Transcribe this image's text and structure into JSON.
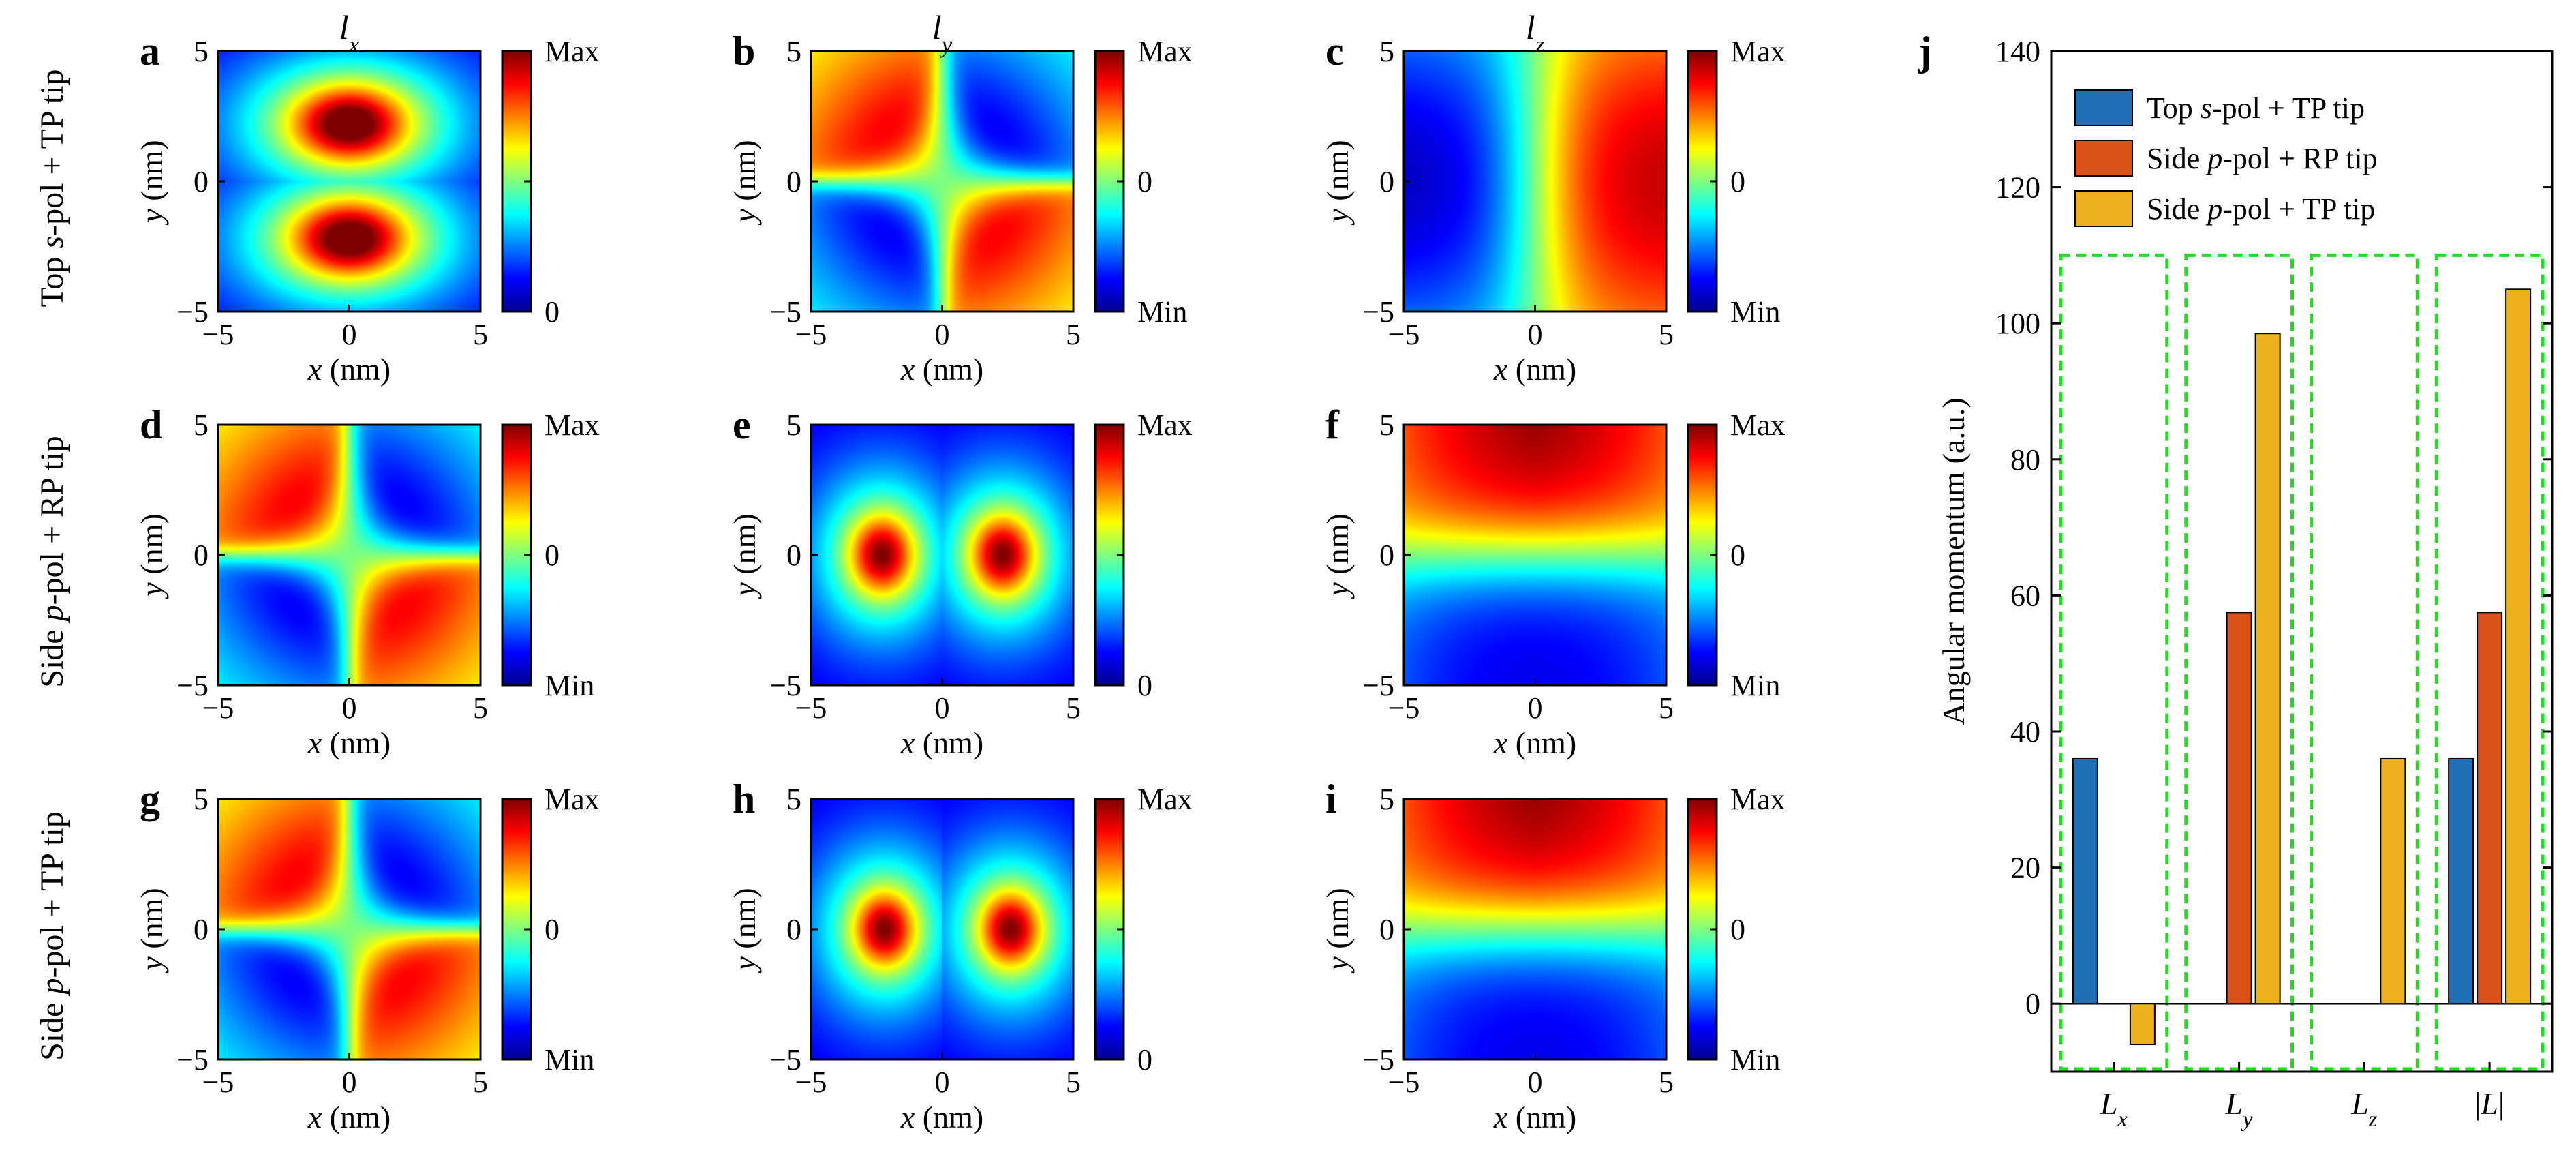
{
  "figure": {
    "panels": [
      {
        "id": "a",
        "row": 0,
        "col": 0,
        "kind": "lx_top",
        "cbar": [
          "Max",
          "0"
        ],
        "title": "l",
        "title_sub": "x"
      },
      {
        "id": "b",
        "row": 0,
        "col": 1,
        "kind": "ly_top",
        "cbar": [
          "Max",
          "0",
          "Min"
        ],
        "title": "l",
        "title_sub": "y"
      },
      {
        "id": "c",
        "row": 0,
        "col": 2,
        "kind": "lz_top",
        "cbar": [
          "Max",
          "0",
          "Min"
        ],
        "title": "l",
        "title_sub": "z"
      },
      {
        "id": "d",
        "row": 1,
        "col": 0,
        "kind": "lx_side",
        "cbar": [
          "Max",
          "0",
          "Min"
        ],
        "title": "",
        "title_sub": ""
      },
      {
        "id": "e",
        "row": 1,
        "col": 1,
        "kind": "ly_side",
        "cbar": [
          "Max",
          "0"
        ],
        "title": "",
        "title_sub": ""
      },
      {
        "id": "f",
        "row": 1,
        "col": 2,
        "kind": "lz_side",
        "cbar": [
          "Max",
          "0",
          "Min"
        ],
        "title": "",
        "title_sub": ""
      },
      {
        "id": "g",
        "row": 2,
        "col": 0,
        "kind": "lx_side",
        "cbar": [
          "Max",
          "0",
          "Min"
        ],
        "title": "",
        "title_sub": ""
      },
      {
        "id": "h",
        "row": 2,
        "col": 1,
        "kind": "ly_side2",
        "cbar": [
          "Max",
          "0"
        ],
        "title": "",
        "title_sub": ""
      },
      {
        "id": "i",
        "row": 2,
        "col": 2,
        "kind": "lz_side",
        "cbar": [
          "Max",
          "0",
          "Min"
        ],
        "title": "",
        "title_sub": ""
      }
    ],
    "row_labels": [
      {
        "pre": "Top ",
        "ital": "s",
        "post": "-pol + TP tip"
      },
      {
        "pre": "Side ",
        "ital": "p",
        "post": "-pol + RP tip"
      },
      {
        "pre": "Side ",
        "ital": "p",
        "post": "-pol + TP tip"
      }
    ],
    "map_axes": {
      "xlabel_var": "x",
      "xlabel_unit": " (nm)",
      "ylabel_var": "y",
      "ylabel_unit": " (nm)",
      "xticks": [
        "−5",
        "0",
        "5"
      ],
      "yticks": [
        "5",
        "0",
        "−5"
      ],
      "xlim": [
        -5,
        5
      ],
      "ylim": [
        -5,
        5
      ]
    },
    "colormap": "jet"
  },
  "chart_data": {
    "type": "bar",
    "panel_label": "j",
    "categories": [
      {
        "var": "L",
        "sub": "x",
        "pre": "",
        "post": ""
      },
      {
        "var": "L",
        "sub": "y",
        "pre": "",
        "post": ""
      },
      {
        "var": "L",
        "sub": "z",
        "pre": "",
        "post": ""
      },
      {
        "var": "L",
        "sub": "",
        "pre": "|",
        "post": "|"
      }
    ],
    "series": [
      {
        "name_pre": "Top ",
        "name_ital": "s",
        "name_post": "-pol + TP tip",
        "color": "#1f6fb5",
        "values": [
          36,
          0,
          0,
          36
        ]
      },
      {
        "name_pre": "Side ",
        "name_ital": "p",
        "name_post": "-pol + RP tip",
        "color": "#d95319",
        "values": [
          0,
          57.5,
          0,
          57.5
        ]
      },
      {
        "name_pre": "Side ",
        "name_ital": "p",
        "name_post": "-pol + TP tip",
        "color": "#edb120",
        "values": [
          -6,
          98.5,
          36,
          105
        ]
      }
    ],
    "ylabel": "Angular momentum (a.u.)",
    "ylim": [
      -10,
      140
    ],
    "yticks": [
      "0",
      "20",
      "40",
      "60",
      "80",
      "100",
      "120",
      "140"
    ],
    "group_box_color": "#22dd22",
    "group_box_range": [
      -10,
      110
    ],
    "legend_position": "top-left"
  }
}
